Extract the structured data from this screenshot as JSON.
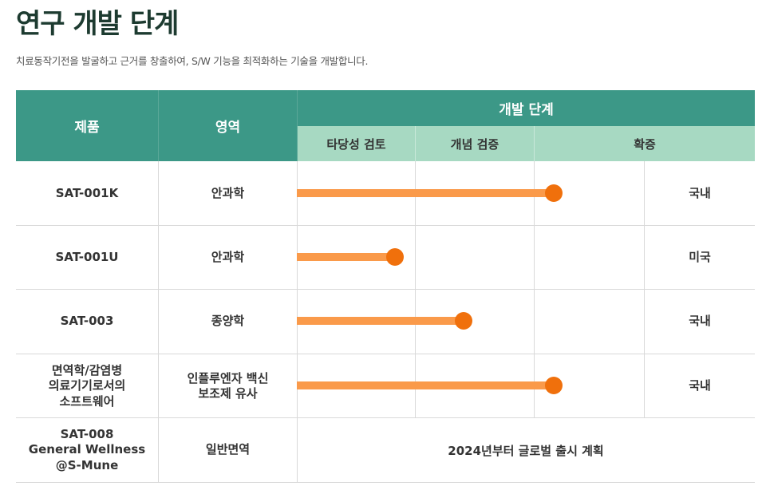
{
  "page": {
    "title": "연구 개발 단계",
    "subtitle": "치료동작기전을 발굴하고 근거를 창출하여, S/W 기능을 최적화하는 기술을 개발합니다."
  },
  "table": {
    "headers": {
      "product": "제품",
      "area": "영역",
      "stage_group": "개발 단계",
      "stages": [
        "타당성 검토",
        "개념 검증",
        "확증"
      ]
    },
    "rows": [
      {
        "product": "SAT-001K",
        "area": "안과학",
        "progress": 0.86,
        "market": "국내"
      },
      {
        "product": "SAT-001U",
        "area": "안과학",
        "progress": 0.33,
        "market": "미국"
      },
      {
        "product": "SAT-003",
        "area": "종양학",
        "progress": 0.56,
        "market": "국내"
      },
      {
        "product": "면역학/감염병\n의료기기로서의\n소프트웨어",
        "area": "인플루엔자 백신\n보조제 유사",
        "progress": 0.86,
        "market": "국내"
      }
    ],
    "last_row": {
      "product": "SAT-008\nGeneral Wellness\n@S-Mune",
      "area": "일반면역",
      "note": "2024년부터 글로벌 출시 계획"
    }
  },
  "colors": {
    "header_dark": "#3c9887",
    "header_light": "#a7d9c2",
    "bar": "#fa9a4a",
    "dot": "#f0700c"
  }
}
